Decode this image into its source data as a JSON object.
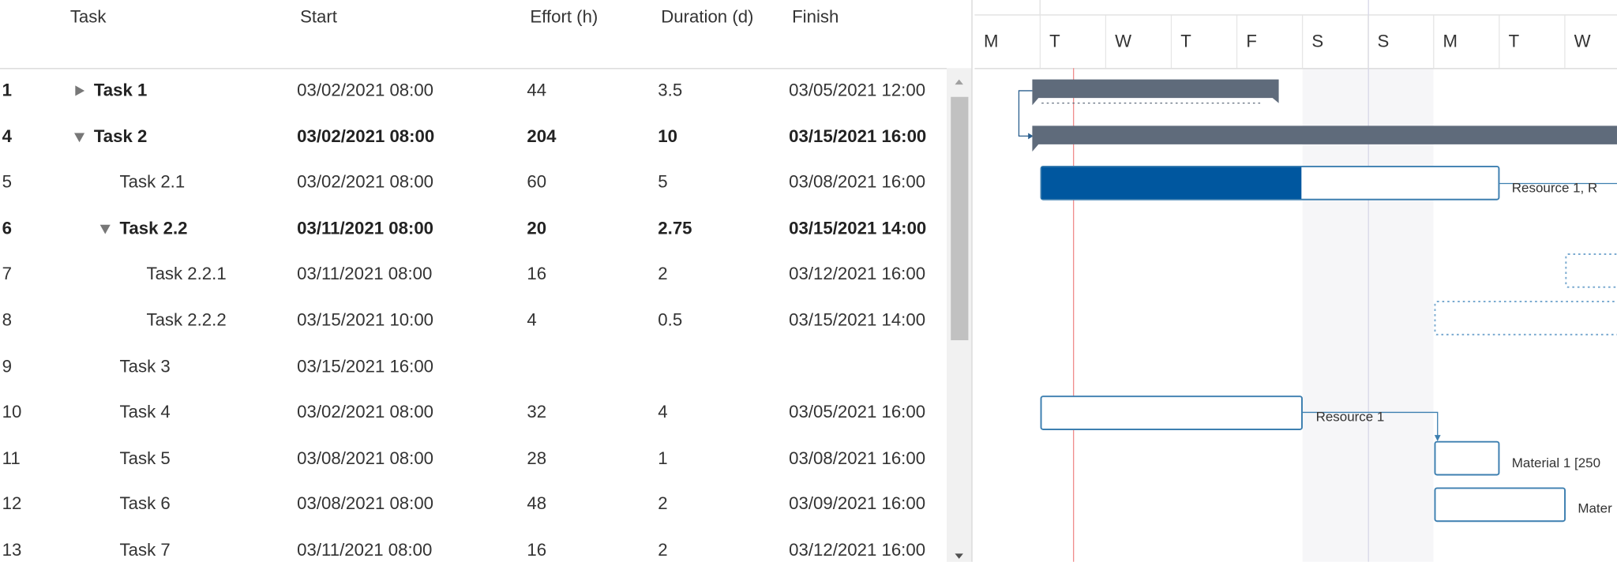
{
  "header": {
    "columns": [
      "Task",
      "Start",
      "Effort (h)",
      "Duration (d)",
      "Finish"
    ]
  },
  "rows": [
    {
      "id": "1",
      "task": "Task 1",
      "start": "03/02/2021 08:00",
      "effort": "44",
      "duration": "3.5",
      "finish": "03/05/2021 12:00"
    },
    {
      "id": "4",
      "task": "Task 2",
      "start": "03/02/2021 08:00",
      "effort": "204",
      "duration": "10",
      "finish": "03/15/2021 16:00"
    },
    {
      "id": "5",
      "task": "Task 2.1",
      "start": "03/02/2021 08:00",
      "effort": "60",
      "duration": "5",
      "finish": "03/08/2021 16:00"
    },
    {
      "id": "6",
      "task": "Task 2.2",
      "start": "03/11/2021 08:00",
      "effort": "20",
      "duration": "2.75",
      "finish": "03/15/2021 14:00"
    },
    {
      "id": "7",
      "task": "Task 2.2.1",
      "start": "03/11/2021 08:00",
      "effort": "16",
      "duration": "2",
      "finish": "03/12/2021 16:00"
    },
    {
      "id": "8",
      "task": "Task 2.2.2",
      "start": "03/15/2021 10:00",
      "effort": "4",
      "duration": "0.5",
      "finish": "03/15/2021 14:00"
    },
    {
      "id": "9",
      "task": "Task 3",
      "start": "03/15/2021 16:00"
    },
    {
      "id": "10",
      "task": "Task 4",
      "start": "03/02/2021 08:00",
      "effort": "32",
      "duration": "4",
      "finish": "03/05/2021 16:00"
    },
    {
      "id": "11",
      "task": "Task 5",
      "start": "03/08/2021 08:00",
      "effort": "28",
      "duration": "1",
      "finish": "03/08/2021 16:00"
    },
    {
      "id": "12",
      "task": "Task 6",
      "start": "03/08/2021 08:00",
      "effort": "48",
      "duration": "2",
      "finish": "03/09/2021 16:00"
    },
    {
      "id": "13",
      "task": "Task 7",
      "start": "03/11/2021 08:00",
      "effort": "16",
      "duration": "2",
      "finish": "03/12/2021 16:00"
    }
  ],
  "timeline": {
    "days": [
      "M",
      "T",
      "W",
      "T",
      "F",
      "S",
      "S",
      "M",
      "T",
      "W"
    ],
    "bar_labels": [
      "Resource 1, R",
      "Resource 1",
      "Material 1 [250",
      "Mater"
    ]
  }
}
